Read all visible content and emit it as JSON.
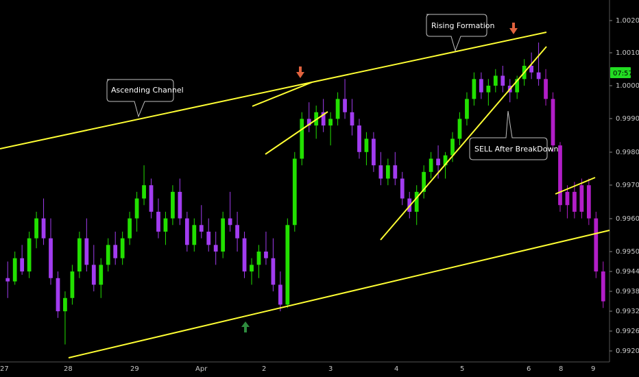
{
  "chart_data": {
    "type": "candlestick",
    "x_ticks": [
      "27",
      "28",
      "29",
      "Apr",
      "2",
      "3",
      "4",
      "5",
      "6",
      "8",
      "9"
    ],
    "y_ticks": [
      "0.99200",
      "0.99260",
      "0.99320",
      "0.99380",
      "0.99440",
      "0.99500",
      "0.99600",
      "0.99700",
      "0.99800",
      "0.99900",
      "1.00000",
      "1.00100",
      "1.00200"
    ],
    "price_label": "07:57",
    "ylim": [
      0.992,
      1.0022
    ],
    "grid": false,
    "colors": {
      "background": "#000000",
      "up": "#22e000",
      "down": "#a23cf0",
      "projection": "#b21ec8",
      "trendline": "#ffff33",
      "callout_border": "#bfbfbf",
      "arrow_up": "#2e8b3e",
      "arrow_down": "#e0623e",
      "price_tag": "#22dd22"
    },
    "annotations": [
      {
        "text": "Ascending Channel"
      },
      {
        "text": "Rising Formation"
      },
      {
        "text": "SELL After BreakDown"
      }
    ],
    "markers": [
      {
        "icon": "up-arrow-icon",
        "color": "#2e8b3e"
      },
      {
        "icon": "down-arrow-icon",
        "color": "#e0623e"
      },
      {
        "icon": "down-arrow-icon",
        "color": "#e0623e"
      }
    ],
    "series": [
      {
        "kind": "candles",
        "values": [
          [
            0.9942,
            0.9947,
            0.9936,
            0.9941
          ],
          [
            0.9941,
            0.995,
            0.994,
            0.9948
          ],
          [
            0.9948,
            0.9952,
            0.9943,
            0.9944
          ],
          [
            0.9944,
            0.9956,
            0.9942,
            0.9954
          ],
          [
            0.9954,
            0.9962,
            0.9951,
            0.996
          ],
          [
            0.996,
            0.9966,
            0.9952,
            0.9954
          ],
          [
            0.9954,
            0.996,
            0.994,
            0.9942
          ],
          [
            0.9942,
            0.9944,
            0.993,
            0.9932
          ],
          [
            0.9932,
            0.9938,
            0.9922,
            0.9936
          ],
          [
            0.9936,
            0.9946,
            0.9934,
            0.9944
          ],
          [
            0.9944,
            0.9956,
            0.9942,
            0.9954
          ],
          [
            0.9954,
            0.996,
            0.9944,
            0.9946
          ],
          [
            0.9946,
            0.9952,
            0.9938,
            0.994
          ],
          [
            0.994,
            0.9948,
            0.9936,
            0.9946
          ],
          [
            0.9946,
            0.9954,
            0.9944,
            0.9952
          ],
          [
            0.9952,
            0.9956,
            0.9946,
            0.9948
          ],
          [
            0.9948,
            0.9956,
            0.9946,
            0.9954
          ],
          [
            0.9954,
            0.9962,
            0.9952,
            0.996
          ],
          [
            0.996,
            0.9968,
            0.9956,
            0.9966
          ],
          [
            0.9966,
            0.9976,
            0.9964,
            0.997
          ],
          [
            0.997,
            0.9972,
            0.996,
            0.9962
          ],
          [
            0.9962,
            0.9966,
            0.9954,
            0.9956
          ],
          [
            0.9956,
            0.9962,
            0.9952,
            0.996
          ],
          [
            0.996,
            0.997,
            0.9958,
            0.9968
          ],
          [
            0.9968,
            0.9972,
            0.9958,
            0.996
          ],
          [
            0.996,
            0.9962,
            0.995,
            0.9952
          ],
          [
            0.9952,
            0.996,
            0.995,
            0.9958
          ],
          [
            0.9958,
            0.9964,
            0.9954,
            0.9956
          ],
          [
            0.9956,
            0.996,
            0.995,
            0.9952
          ],
          [
            0.9952,
            0.9956,
            0.9946,
            0.995
          ],
          [
            0.995,
            0.9962,
            0.9948,
            0.996
          ],
          [
            0.996,
            0.9968,
            0.9956,
            0.9958
          ],
          [
            0.9958,
            0.9962,
            0.995,
            0.9954
          ],
          [
            0.9954,
            0.9956,
            0.9942,
            0.9944
          ],
          [
            0.9944,
            0.9948,
            0.994,
            0.9946
          ],
          [
            0.9946,
            0.9952,
            0.9942,
            0.995
          ],
          [
            0.995,
            0.9956,
            0.9946,
            0.9948
          ],
          [
            0.9948,
            0.9954,
            0.9938,
            0.994
          ],
          [
            0.994,
            0.9944,
            0.9932,
            0.9934
          ],
          [
            0.9934,
            0.996,
            0.9933,
            0.9958
          ],
          [
            0.9958,
            0.998,
            0.9956,
            0.9978
          ],
          [
            0.9978,
            0.9992,
            0.9976,
            0.999
          ],
          [
            0.999,
            0.9995,
            0.9986,
            0.9988
          ],
          [
            0.9988,
            0.9994,
            0.9984,
            0.9992
          ],
          [
            0.9992,
            0.9996,
            0.9986,
            0.9988
          ],
          [
            0.9988,
            0.9992,
            0.9982,
            0.999
          ],
          [
            0.999,
            0.9998,
            0.9988,
            0.9996
          ],
          [
            0.9996,
            1.0002,
            0.999,
            0.9992
          ],
          [
            0.9992,
            0.9996,
            0.9985,
            0.9988
          ],
          [
            0.9988,
            0.999,
            0.9978,
            0.998
          ],
          [
            0.998,
            0.9986,
            0.9976,
            0.9984
          ],
          [
            0.9984,
            0.9986,
            0.9974,
            0.9976
          ],
          [
            0.9976,
            0.998,
            0.997,
            0.9972
          ],
          [
            0.9972,
            0.9978,
            0.997,
            0.9976
          ],
          [
            0.9976,
            0.998,
            0.997,
            0.9972
          ],
          [
            0.9972,
            0.9974,
            0.9964,
            0.9966
          ],
          [
            0.9966,
            0.9968,
            0.996,
            0.9962
          ],
          [
            0.9962,
            0.997,
            0.9958,
            0.9968
          ],
          [
            0.9968,
            0.9976,
            0.9966,
            0.9974
          ],
          [
            0.9974,
            0.998,
            0.9972,
            0.9978
          ],
          [
            0.9978,
            0.9982,
            0.9972,
            0.9976
          ],
          [
            0.9976,
            0.998,
            0.9972,
            0.9979
          ],
          [
            0.9979,
            0.9986,
            0.9977,
            0.9984
          ],
          [
            0.9984,
            0.9992,
            0.9982,
            0.999
          ],
          [
            0.999,
            0.9998,
            0.9988,
            0.9996
          ],
          [
            0.9996,
            1.0004,
            0.9994,
            1.0002
          ],
          [
            1.0002,
            1.0004,
            0.9996,
            0.9998
          ],
          [
            0.9998,
            1.0002,
            0.9994,
            1.0
          ],
          [
            1.0,
            1.0005,
            0.9998,
            1.0003
          ],
          [
            1.0003,
            1.0006,
            0.9998,
            1.0
          ],
          [
            1.0,
            1.0002,
            0.9995,
            0.9998
          ],
          [
            0.9998,
            1.0003,
            0.9996,
            1.0002
          ],
          [
            1.0002,
            1.0008,
            1.0,
            1.0006
          ],
          [
            1.0006,
            1.001,
            1.0002,
            1.0004
          ],
          [
            1.0004,
            1.0013,
            1.0,
            1.0002
          ],
          [
            1.0002,
            1.0005,
            0.9994,
            0.9996
          ],
          [
            0.9996,
            0.9998,
            0.998,
            0.9982
          ],
          [
            0.9982,
            0.9983,
            0.9962,
            0.9964
          ],
          [
            0.9964,
            0.997,
            0.996,
            0.9968
          ],
          [
            0.9968,
            0.9971,
            0.996,
            0.9962
          ],
          [
            0.9962,
            0.9972,
            0.996,
            0.997
          ],
          [
            0.997,
            0.9972,
            0.9958,
            0.996
          ],
          [
            0.996,
            0.9962,
            0.9942,
            0.9944
          ],
          [
            0.9944,
            0.9947,
            0.9933,
            0.9935
          ]
        ]
      }
    ]
  }
}
